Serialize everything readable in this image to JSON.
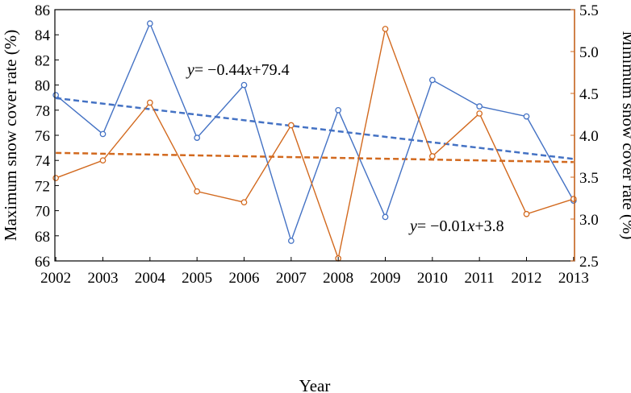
{
  "chart_data": {
    "type": "line",
    "xlabel": "Year",
    "ylabel_left": "Maximum snow cover rate (%)",
    "ylabel_right": "Minimum snow cover rate (%)",
    "x": [
      2002,
      2003,
      2004,
      2005,
      2006,
      2007,
      2008,
      2009,
      2010,
      2011,
      2012,
      2013
    ],
    "ylim_left": [
      66,
      86
    ],
    "ylim_right": [
      2.5,
      5.5
    ],
    "yticks_left": [
      66,
      68,
      70,
      72,
      74,
      76,
      78,
      80,
      82,
      84,
      86
    ],
    "yticks_right": [
      "2.5",
      "3.0",
      "3.5",
      "4.0",
      "4.5",
      "5.0",
      "5.5"
    ],
    "grid": false,
    "series": [
      {
        "axis": "left",
        "color": "#4472c4",
        "values": [
          79.2,
          76.1,
          84.9,
          75.8,
          80.0,
          67.6,
          78.0,
          69.5,
          80.4,
          78.3,
          77.5,
          70.8
        ]
      },
      {
        "axis": "right",
        "color": "#d2691e",
        "values": [
          3.49,
          3.7,
          4.39,
          3.33,
          3.2,
          4.12,
          2.53,
          5.27,
          3.75,
          4.26,
          3.06,
          3.24
        ]
      }
    ],
    "trendlines": [
      {
        "axis": "left",
        "color": "#4472c4",
        "slope": -0.44,
        "intercept": 79.4,
        "style": "dashed"
      },
      {
        "axis": "right",
        "color": "#d2691e",
        "slope": -0.01,
        "intercept": 3.8,
        "style": "dashed"
      }
    ],
    "annotations": [
      {
        "id": "eq1",
        "var": "y",
        "mid": "= −0.44",
        "var2": "x",
        "tail": "+79.4"
      },
      {
        "id": "eq2",
        "var": "y",
        "mid": "= −0.01",
        "var2": "x",
        "tail": "+3.8"
      }
    ]
  }
}
